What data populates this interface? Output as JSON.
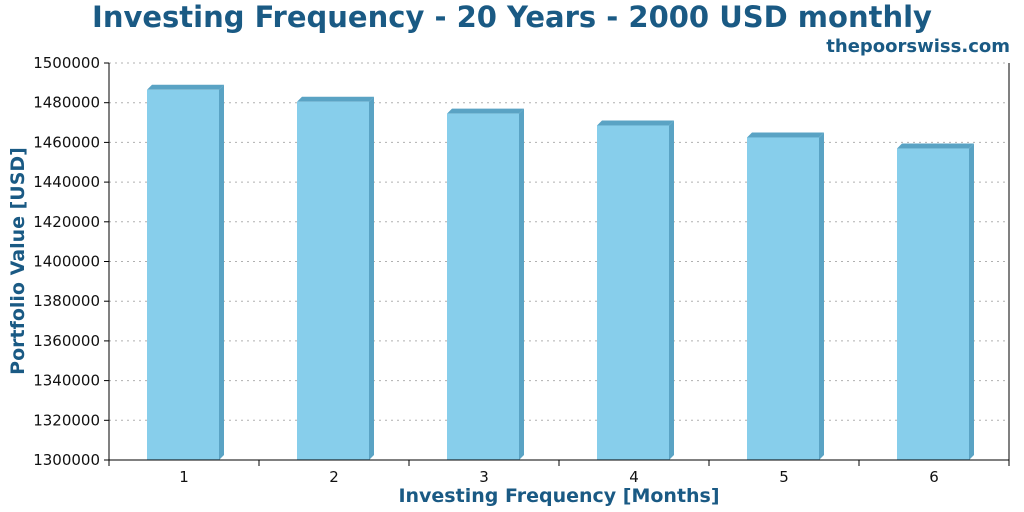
{
  "chart_data": {
    "type": "bar",
    "title": "Investing Frequency - 20 Years - 2000 USD monthly",
    "source": "thepoorswiss.com",
    "xlabel": "Investing Frequency [Months]",
    "ylabel": "Portfolio Value [USD]",
    "categories": [
      "1",
      "2",
      "3",
      "4",
      "5",
      "6"
    ],
    "values": [
      1486500,
      1480500,
      1474500,
      1468500,
      1462500,
      1456900
    ],
    "ylim": [
      1300000,
      1500000
    ],
    "yticks": [
      "1300000",
      "1320000",
      "1340000",
      "1360000",
      "1380000",
      "1400000",
      "1420000",
      "1440000",
      "1460000",
      "1480000",
      "1500000"
    ],
    "grid": true,
    "colors": {
      "bar": "#87ceeb",
      "bar_side": "#5aa3c4",
      "text": "#1a5a84"
    }
  }
}
